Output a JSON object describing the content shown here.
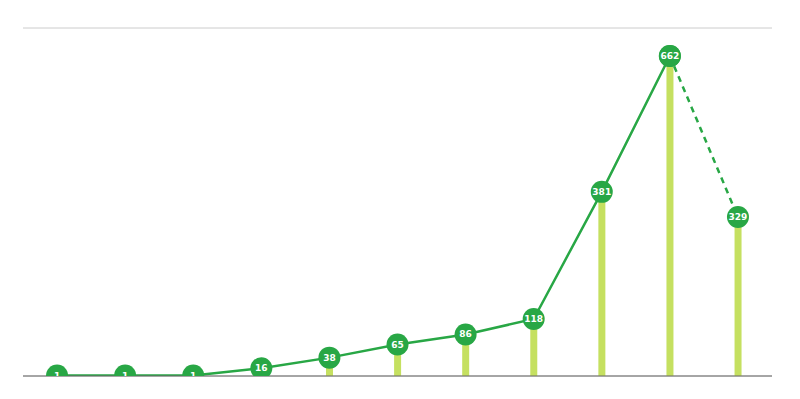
{
  "chart_data": {
    "type": "bar",
    "categories": [
      null,
      null,
      null,
      null,
      null,
      null,
      null,
      null,
      null,
      null,
      null
    ],
    "series": [
      {
        "type": "bar",
        "color": "#c5e060",
        "values": [
          null,
          null,
          null,
          null,
          38,
          65,
          86,
          118,
          381,
          662,
          329
        ]
      },
      {
        "type": "line",
        "color": "#28a745",
        "marker": "circle",
        "line_style": "solid",
        "data_labels": true,
        "values": [
          1,
          1,
          1,
          16,
          38,
          65,
          86,
          118,
          381,
          662,
          null
        ]
      },
      {
        "type": "line",
        "color": "#28a745",
        "marker": "circle",
        "line_style": "dashed",
        "data_labels": true,
        "values": [
          null,
          null,
          null,
          null,
          null,
          null,
          null,
          null,
          null,
          662,
          329
        ]
      }
    ],
    "ylim": [
      0,
      720
    ],
    "yticks": [
      0,
      72,
      144,
      216,
      288,
      360,
      432,
      504,
      576,
      648,
      720
    ],
    "grid": true,
    "tick_labels": false
  }
}
